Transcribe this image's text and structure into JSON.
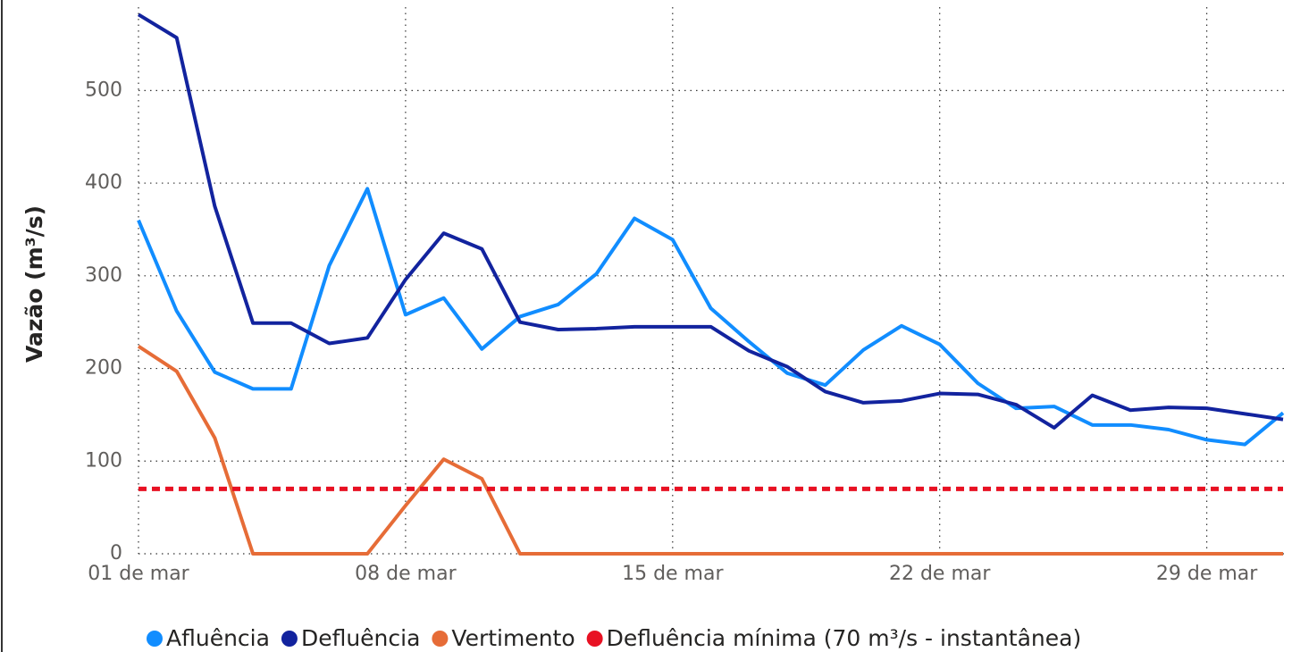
{
  "chart_data": {
    "type": "line",
    "y_label": "Vazão (m³/s)",
    "categories": [
      "01 de mar",
      null,
      null,
      null,
      null,
      null,
      null,
      "08 de mar",
      null,
      null,
      null,
      null,
      null,
      null,
      "15 de mar",
      null,
      null,
      null,
      null,
      null,
      null,
      "22 de mar",
      null,
      null,
      null,
      null,
      null,
      null,
      "29 de mar",
      null,
      null
    ],
    "series": [
      {
        "name": "Afluência",
        "color": "#118dff",
        "values": [
          360,
          262,
          196,
          178,
          178,
          311,
          394,
          258,
          276,
          221,
          256,
          269,
          302,
          362,
          339,
          265,
          229,
          195,
          182,
          220,
          246,
          226,
          184,
          157,
          159,
          139,
          139,
          134,
          123,
          118,
          152
        ]
      },
      {
        "name": "Defluência",
        "color": "#12239e",
        "values": [
          582,
          557,
          375,
          249,
          249,
          227,
          233,
          296,
          346,
          329,
          250,
          242,
          243,
          245,
          245,
          245,
          219,
          202,
          175,
          163,
          165,
          173,
          172,
          161,
          136,
          171,
          155,
          158,
          157,
          151,
          145
        ]
      },
      {
        "name": "Vertimento",
        "color": "#e66c37",
        "values": [
          224,
          197,
          125,
          0,
          0,
          0,
          0,
          52,
          102,
          81,
          0,
          0,
          0,
          0,
          0,
          0,
          0,
          0,
          0,
          0,
          0,
          0,
          0,
          0,
          0,
          0,
          0,
          0,
          0,
          0,
          0
        ]
      },
      {
        "name": "Defluência mínima (70 m³/s - instantânea)",
        "color": "#e81123",
        "dashed": true,
        "values": [
          70,
          70,
          70,
          70,
          70,
          70,
          70,
          70,
          70,
          70,
          70,
          70,
          70,
          70,
          70,
          70,
          70,
          70,
          70,
          70,
          70,
          70,
          70,
          70,
          70,
          70,
          70,
          70,
          70,
          70,
          70
        ]
      }
    ],
    "ylim": [
      0,
      590
    ],
    "yticks": [
      0,
      100,
      200,
      300,
      400,
      500
    ],
    "grid": true,
    "legend": "bottom"
  }
}
